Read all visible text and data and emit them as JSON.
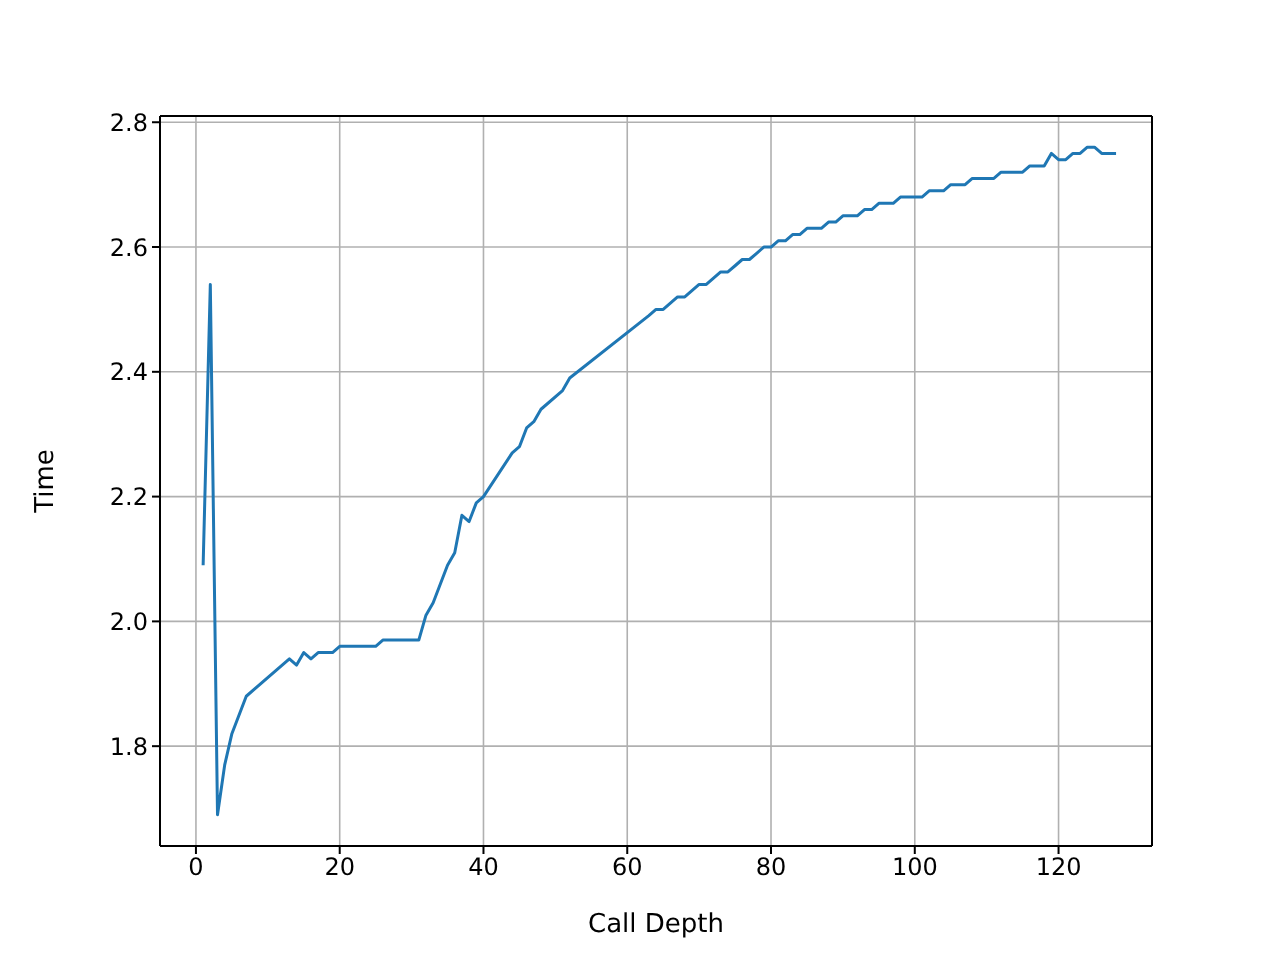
{
  "chart_data": {
    "type": "line",
    "xlabel": "Call Depth",
    "ylabel": "Time",
    "x": [
      1,
      2,
      3,
      4,
      5,
      7,
      13,
      14,
      15,
      16,
      17,
      19,
      20,
      25,
      26,
      31,
      32,
      33,
      35,
      36,
      37,
      38,
      39,
      40,
      44,
      45,
      46,
      47,
      48,
      51,
      52,
      63,
      64,
      65,
      66,
      67,
      68,
      69,
      70,
      71,
      72,
      73,
      74,
      75,
      76,
      77,
      78,
      79,
      80,
      81,
      82,
      83,
      84,
      85,
      87,
      88,
      89,
      90,
      92,
      93,
      94,
      95,
      97,
      98,
      101,
      102,
      104,
      105,
      107,
      108,
      111,
      112,
      115,
      116,
      118,
      119,
      120,
      121,
      122,
      123,
      124,
      125,
      126,
      128
    ],
    "series": [
      {
        "color": "#1f77b4",
        "values": [
          2.09,
          2.54,
          1.69,
          1.77,
          1.82,
          1.88,
          1.94,
          1.93,
          1.95,
          1.94,
          1.95,
          1.95,
          1.96,
          1.96,
          1.97,
          1.97,
          2.01,
          2.03,
          2.09,
          2.11,
          2.17,
          2.16,
          2.19,
          2.2,
          2.27,
          2.28,
          2.31,
          2.32,
          2.34,
          2.37,
          2.39,
          2.49,
          2.5,
          2.5,
          2.51,
          2.52,
          2.52,
          2.53,
          2.54,
          2.54,
          2.55,
          2.56,
          2.56,
          2.57,
          2.58,
          2.58,
          2.59,
          2.6,
          2.6,
          2.61,
          2.61,
          2.62,
          2.62,
          2.63,
          2.63,
          2.64,
          2.64,
          2.65,
          2.65,
          2.66,
          2.66,
          2.67,
          2.67,
          2.68,
          2.68,
          2.69,
          2.69,
          2.7,
          2.7,
          2.71,
          2.71,
          2.72,
          2.72,
          2.73,
          2.73,
          2.75,
          2.74,
          2.74,
          2.75,
          2.75,
          2.76,
          2.76,
          2.75,
          2.75
        ]
      }
    ],
    "xlim": [
      -5,
      133
    ],
    "xticks": [
      0,
      20,
      40,
      60,
      80,
      100,
      120
    ],
    "ylim": [
      1.64,
      2.81
    ],
    "yticks": [
      {
        "value": 1.8,
        "label": "1.8"
      },
      {
        "value": 2.0,
        "label": "2.0"
      },
      {
        "value": 2.2,
        "label": "2.2"
      },
      {
        "value": 2.4,
        "label": "2.4"
      },
      {
        "value": 2.6,
        "label": "2.6"
      },
      {
        "value": 2.8,
        "label": "2.8"
      }
    ],
    "grid": true,
    "legend": false,
    "marker": "none",
    "line_style": "solid"
  }
}
